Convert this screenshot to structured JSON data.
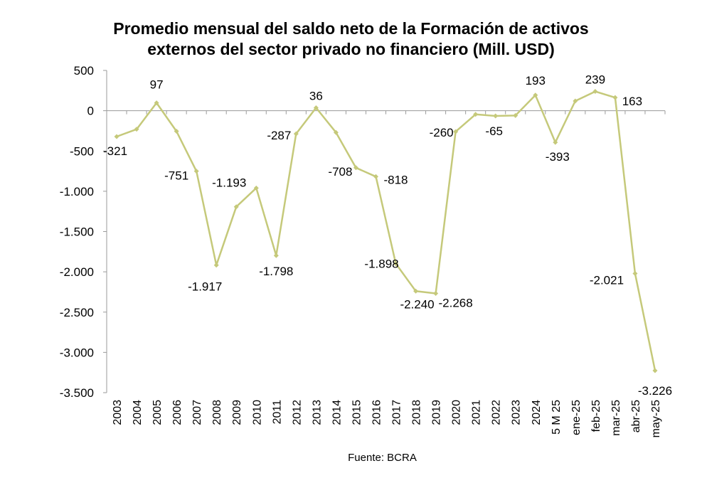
{
  "chart_data": {
    "type": "line",
    "title_line1": "Promedio mensual del saldo neto de la Formación de activos",
    "title_line2": "externos del sector privado no financiero (Mill. USD)",
    "xlabel": "",
    "ylabel": "",
    "ylim": [
      -3500,
      500
    ],
    "yticks": [
      500,
      0,
      -500,
      -1000,
      -1500,
      -2000,
      -2500,
      -3000,
      -3500
    ],
    "ytick_labels": [
      "500",
      "0",
      "-500",
      "-1.000",
      "-1.500",
      "-2.000",
      "-2.500",
      "-3.000",
      "-3.500"
    ],
    "grid": false,
    "legend": "none",
    "series_color": "#c5c97a",
    "categories": [
      "2003",
      "2004",
      "2005",
      "2006",
      "2007",
      "2008",
      "2009",
      "2010",
      "2011",
      "2012",
      "2013",
      "2014",
      "2015",
      "2016",
      "2017",
      "2018",
      "2019",
      "2020",
      "2021",
      "2022",
      "2023",
      "2024",
      "5 M 25",
      "ene-25",
      "feb-25",
      "mar-25",
      "abr-25",
      "may-25"
    ],
    "values": [
      -321,
      -230,
      97,
      -255,
      -751,
      -1917,
      -1193,
      -960,
      -1798,
      -287,
      36,
      -270,
      -708,
      -818,
      -1898,
      -2240,
      -2268,
      -260,
      -45,
      -65,
      -60,
      193,
      -393,
      120,
      239,
      163,
      -2021,
      -3226
    ],
    "data_labels": [
      {
        "index": 0,
        "text": "-321"
      },
      {
        "index": 2,
        "text": "97"
      },
      {
        "index": 4,
        "text": "-751"
      },
      {
        "index": 5,
        "text": "-1.917"
      },
      {
        "index": 6,
        "text": "-1.193"
      },
      {
        "index": 8,
        "text": "-1.798"
      },
      {
        "index": 9,
        "text": "-287"
      },
      {
        "index": 10,
        "text": "36"
      },
      {
        "index": 12,
        "text": "-708"
      },
      {
        "index": 13,
        "text": "-818"
      },
      {
        "index": 14,
        "text": "-1.898"
      },
      {
        "index": 15,
        "text": "-2.240"
      },
      {
        "index": 16,
        "text": "-2.268"
      },
      {
        "index": 17,
        "text": "-260"
      },
      {
        "index": 19,
        "text": "-65"
      },
      {
        "index": 21,
        "text": "193"
      },
      {
        "index": 22,
        "text": "-393"
      },
      {
        "index": 24,
        "text": "239"
      },
      {
        "index": 25,
        "text": "163"
      },
      {
        "index": 26,
        "text": "-2.021"
      },
      {
        "index": 27,
        "text": "-3.226"
      }
    ]
  },
  "source": "Fuente: BCRA"
}
